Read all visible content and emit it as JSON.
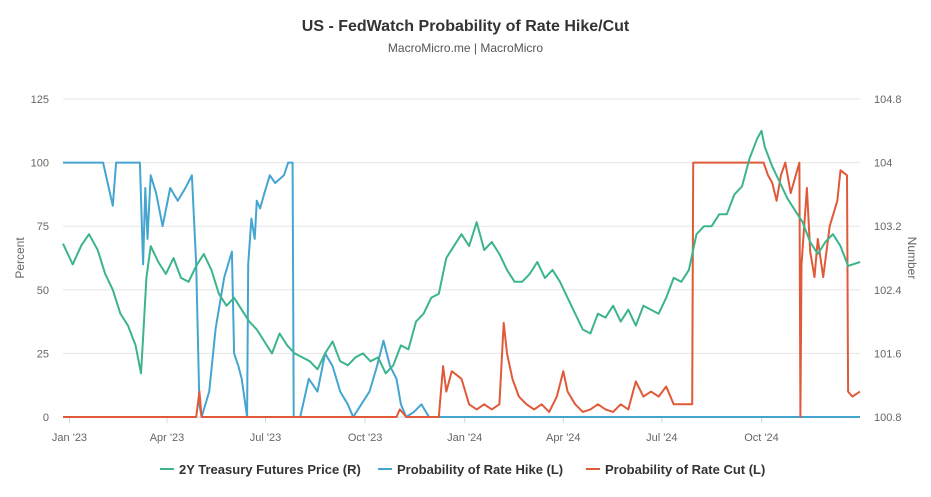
{
  "chart_data": {
    "type": "line",
    "title": "US - FedWatch Probability of Rate Hike/Cut",
    "subtitle": "MacroMicro.me | MacroMicro",
    "y_left_label": "Percent",
    "y_right_label": "Number",
    "ylim_left": [
      0,
      125
    ],
    "ylim_right": [
      100.8,
      104.8
    ],
    "yticks_left": [
      "0",
      "25",
      "50",
      "75",
      "100",
      "125"
    ],
    "yticks_right": [
      "100.8",
      "101.6",
      "102.4",
      "103.2",
      "104",
      "104.8"
    ],
    "xlim": [
      "2022-12-26",
      "2024-12-31"
    ],
    "xticks": [
      {
        "date": "2023-01-01",
        "label": "Jan '23"
      },
      {
        "date": "2023-04-01",
        "label": "Apr '23"
      },
      {
        "date": "2023-07-01",
        "label": "Jul '23"
      },
      {
        "date": "2023-10-01",
        "label": "Oct '23"
      },
      {
        "date": "2024-01-01",
        "label": "Jan '24"
      },
      {
        "date": "2024-04-01",
        "label": "Apr '24"
      },
      {
        "date": "2024-07-01",
        "label": "Jul '24"
      },
      {
        "date": "2024-10-01",
        "label": "Oct '24"
      }
    ],
    "grid": true,
    "legend_position": "bottom",
    "series": [
      {
        "name": "2Y Treasury Futures Price (R)",
        "axis": "right",
        "color": "#3cb48c",
        "points": [
          [
            "2022-12-26",
            102.98
          ],
          [
            "2023-01-04",
            102.72
          ],
          [
            "2023-01-12",
            102.96
          ],
          [
            "2023-01-19",
            103.1
          ],
          [
            "2023-01-27",
            102.9
          ],
          [
            "2023-02-03",
            102.6
          ],
          [
            "2023-02-10",
            102.4
          ],
          [
            "2023-02-17",
            102.1
          ],
          [
            "2023-02-24",
            101.95
          ],
          [
            "2023-03-03",
            101.7
          ],
          [
            "2023-03-08",
            101.35
          ],
          [
            "2023-03-10",
            101.8
          ],
          [
            "2023-03-13",
            102.55
          ],
          [
            "2023-03-17",
            102.95
          ],
          [
            "2023-03-24",
            102.75
          ],
          [
            "2023-03-31",
            102.6
          ],
          [
            "2023-04-07",
            102.8
          ],
          [
            "2023-04-14",
            102.55
          ],
          [
            "2023-04-21",
            102.5
          ],
          [
            "2023-04-28",
            102.7
          ],
          [
            "2023-05-05",
            102.85
          ],
          [
            "2023-05-12",
            102.65
          ],
          [
            "2023-05-19",
            102.35
          ],
          [
            "2023-05-26",
            102.2
          ],
          [
            "2023-06-02",
            102.3
          ],
          [
            "2023-06-09",
            102.15
          ],
          [
            "2023-06-16",
            102.0
          ],
          [
            "2023-06-23",
            101.9
          ],
          [
            "2023-06-30",
            101.75
          ],
          [
            "2023-07-07",
            101.6
          ],
          [
            "2023-07-14",
            101.85
          ],
          [
            "2023-07-21",
            101.7
          ],
          [
            "2023-07-28",
            101.6
          ],
          [
            "2023-08-04",
            101.55
          ],
          [
            "2023-08-11",
            101.5
          ],
          [
            "2023-08-18",
            101.4
          ],
          [
            "2023-08-25",
            101.6
          ],
          [
            "2023-09-01",
            101.75
          ],
          [
            "2023-09-08",
            101.5
          ],
          [
            "2023-09-15",
            101.45
          ],
          [
            "2023-09-22",
            101.55
          ],
          [
            "2023-09-29",
            101.6
          ],
          [
            "2023-10-06",
            101.5
          ],
          [
            "2023-10-13",
            101.55
          ],
          [
            "2023-10-20",
            101.35
          ],
          [
            "2023-10-27",
            101.45
          ],
          [
            "2023-11-03",
            101.7
          ],
          [
            "2023-11-10",
            101.65
          ],
          [
            "2023-11-17",
            102.0
          ],
          [
            "2023-11-24",
            102.1
          ],
          [
            "2023-12-01",
            102.3
          ],
          [
            "2023-12-08",
            102.35
          ],
          [
            "2023-12-15",
            102.8
          ],
          [
            "2023-12-22",
            102.95
          ],
          [
            "2023-12-29",
            103.1
          ],
          [
            "2024-01-05",
            102.95
          ],
          [
            "2024-01-12",
            103.25
          ],
          [
            "2024-01-19",
            102.9
          ],
          [
            "2024-01-26",
            103.0
          ],
          [
            "2024-02-02",
            102.85
          ],
          [
            "2024-02-09",
            102.65
          ],
          [
            "2024-02-16",
            102.5
          ],
          [
            "2024-02-23",
            102.5
          ],
          [
            "2024-03-01",
            102.6
          ],
          [
            "2024-03-08",
            102.75
          ],
          [
            "2024-03-15",
            102.55
          ],
          [
            "2024-03-22",
            102.65
          ],
          [
            "2024-03-29",
            102.5
          ],
          [
            "2024-04-05",
            102.3
          ],
          [
            "2024-04-12",
            102.1
          ],
          [
            "2024-04-19",
            101.9
          ],
          [
            "2024-04-26",
            101.85
          ],
          [
            "2024-05-03",
            102.1
          ],
          [
            "2024-05-10",
            102.05
          ],
          [
            "2024-05-17",
            102.2
          ],
          [
            "2024-05-24",
            102.0
          ],
          [
            "2024-05-31",
            102.15
          ],
          [
            "2024-06-07",
            101.95
          ],
          [
            "2024-06-14",
            102.2
          ],
          [
            "2024-06-21",
            102.15
          ],
          [
            "2024-06-28",
            102.1
          ],
          [
            "2024-07-05",
            102.3
          ],
          [
            "2024-07-12",
            102.55
          ],
          [
            "2024-07-19",
            102.5
          ],
          [
            "2024-07-26",
            102.65
          ],
          [
            "2024-08-02",
            103.1
          ],
          [
            "2024-08-09",
            103.2
          ],
          [
            "2024-08-16",
            103.2
          ],
          [
            "2024-08-23",
            103.35
          ],
          [
            "2024-08-30",
            103.35
          ],
          [
            "2024-09-06",
            103.6
          ],
          [
            "2024-09-13",
            103.7
          ],
          [
            "2024-09-20",
            104.05
          ],
          [
            "2024-09-27",
            104.3
          ],
          [
            "2024-10-01",
            104.4
          ],
          [
            "2024-10-04",
            104.2
          ],
          [
            "2024-10-11",
            103.95
          ],
          [
            "2024-10-18",
            103.75
          ],
          [
            "2024-10-25",
            103.55
          ],
          [
            "2024-11-01",
            103.4
          ],
          [
            "2024-11-08",
            103.25
          ],
          [
            "2024-11-15",
            103.0
          ],
          [
            "2024-11-22",
            102.85
          ],
          [
            "2024-11-29",
            103.0
          ],
          [
            "2024-12-06",
            103.1
          ],
          [
            "2024-12-13",
            102.95
          ],
          [
            "2024-12-20",
            102.7
          ],
          [
            "2024-12-31",
            102.75
          ]
        ]
      },
      {
        "name": "Probability of Rate Hike (L)",
        "axis": "left",
        "color": "#45a5d1",
        "points": [
          [
            "2022-12-26",
            100
          ],
          [
            "2023-01-31",
            100
          ],
          [
            "2023-02-01",
            100
          ],
          [
            "2023-02-10",
            83
          ],
          [
            "2023-02-13",
            100
          ],
          [
            "2023-03-07",
            100
          ],
          [
            "2023-03-10",
            60
          ],
          [
            "2023-03-12",
            90
          ],
          [
            "2023-03-14",
            70
          ],
          [
            "2023-03-17",
            95
          ],
          [
            "2023-03-22",
            88
          ],
          [
            "2023-03-28",
            75
          ],
          [
            "2023-04-04",
            90
          ],
          [
            "2023-04-11",
            85
          ],
          [
            "2023-04-18",
            90
          ],
          [
            "2023-04-24",
            95
          ],
          [
            "2023-04-28",
            60
          ],
          [
            "2023-05-01",
            5
          ],
          [
            "2023-05-03",
            0
          ],
          [
            "2023-05-10",
            10
          ],
          [
            "2023-05-16",
            35
          ],
          [
            "2023-05-24",
            55
          ],
          [
            "2023-05-31",
            65
          ],
          [
            "2023-06-02",
            25
          ],
          [
            "2023-06-06",
            20
          ],
          [
            "2023-06-09",
            15
          ],
          [
            "2023-06-14",
            0
          ],
          [
            "2023-06-15",
            60
          ],
          [
            "2023-06-18",
            78
          ],
          [
            "2023-06-21",
            70
          ],
          [
            "2023-06-23",
            85
          ],
          [
            "2023-06-26",
            82
          ],
          [
            "2023-06-30",
            88
          ],
          [
            "2023-07-05",
            95
          ],
          [
            "2023-07-10",
            92
          ],
          [
            "2023-07-18",
            95
          ],
          [
            "2023-07-22",
            100
          ],
          [
            "2023-07-26",
            100
          ],
          [
            "2023-07-27",
            0
          ],
          [
            "2023-08-02",
            0
          ],
          [
            "2023-08-10",
            15
          ],
          [
            "2023-08-18",
            10
          ],
          [
            "2023-08-25",
            25
          ],
          [
            "2023-09-01",
            20
          ],
          [
            "2023-09-08",
            10
          ],
          [
            "2023-09-15",
            5
          ],
          [
            "2023-09-20",
            0
          ],
          [
            "2023-10-05",
            10
          ],
          [
            "2023-10-12",
            20
          ],
          [
            "2023-10-18",
            30
          ],
          [
            "2023-10-24",
            20
          ],
          [
            "2023-10-30",
            15
          ],
          [
            "2023-11-03",
            5
          ],
          [
            "2023-11-08",
            0
          ],
          [
            "2023-11-15",
            2
          ],
          [
            "2023-11-22",
            5
          ],
          [
            "2023-11-29",
            0
          ],
          [
            "2024-12-31",
            0
          ]
        ]
      },
      {
        "name": "Probability of Rate Cut (L)",
        "axis": "left",
        "color": "#e05a3a",
        "points": [
          [
            "2022-12-26",
            0
          ],
          [
            "2023-04-28",
            0
          ],
          [
            "2023-05-01",
            10
          ],
          [
            "2023-05-03",
            0
          ],
          [
            "2023-10-30",
            0
          ],
          [
            "2023-11-02",
            3
          ],
          [
            "2023-11-08",
            0
          ],
          [
            "2023-12-08",
            0
          ],
          [
            "2023-12-12",
            20
          ],
          [
            "2023-12-15",
            10
          ],
          [
            "2023-12-20",
            18
          ],
          [
            "2023-12-29",
            15
          ],
          [
            "2024-01-05",
            5
          ],
          [
            "2024-01-12",
            3
          ],
          [
            "2024-01-19",
            5
          ],
          [
            "2024-01-26",
            3
          ],
          [
            "2024-02-02",
            5
          ],
          [
            "2024-02-06",
            37
          ],
          [
            "2024-02-09",
            25
          ],
          [
            "2024-02-14",
            15
          ],
          [
            "2024-02-20",
            8
          ],
          [
            "2024-02-27",
            5
          ],
          [
            "2024-03-05",
            3
          ],
          [
            "2024-03-12",
            5
          ],
          [
            "2024-03-19",
            2
          ],
          [
            "2024-03-26",
            8
          ],
          [
            "2024-04-01",
            18
          ],
          [
            "2024-04-05",
            10
          ],
          [
            "2024-04-12",
            5
          ],
          [
            "2024-04-19",
            2
          ],
          [
            "2024-04-26",
            3
          ],
          [
            "2024-05-03",
            5
          ],
          [
            "2024-05-10",
            3
          ],
          [
            "2024-05-17",
            2
          ],
          [
            "2024-05-24",
            5
          ],
          [
            "2024-05-31",
            3
          ],
          [
            "2024-06-07",
            14
          ],
          [
            "2024-06-14",
            8
          ],
          [
            "2024-06-21",
            10
          ],
          [
            "2024-06-28",
            8
          ],
          [
            "2024-07-05",
            12
          ],
          [
            "2024-07-12",
            5
          ],
          [
            "2024-07-19",
            5
          ],
          [
            "2024-07-29",
            5
          ],
          [
            "2024-07-30",
            100
          ],
          [
            "2024-10-03",
            100
          ],
          [
            "2024-10-07",
            95
          ],
          [
            "2024-10-11",
            92
          ],
          [
            "2024-10-15",
            85
          ],
          [
            "2024-10-19",
            95
          ],
          [
            "2024-10-23",
            100
          ],
          [
            "2024-10-28",
            88
          ],
          [
            "2024-11-05",
            100
          ],
          [
            "2024-11-06",
            0
          ],
          [
            "2024-11-07",
            60
          ],
          [
            "2024-11-12",
            90
          ],
          [
            "2024-11-15",
            65
          ],
          [
            "2024-11-19",
            55
          ],
          [
            "2024-11-22",
            70
          ],
          [
            "2024-11-27",
            55
          ],
          [
            "2024-12-03",
            75
          ],
          [
            "2024-12-10",
            85
          ],
          [
            "2024-12-13",
            97
          ],
          [
            "2024-12-16",
            96
          ],
          [
            "2024-12-19",
            95
          ],
          [
            "2024-12-20",
            10
          ],
          [
            "2024-12-24",
            8
          ],
          [
            "2024-12-31",
            10
          ]
        ]
      }
    ]
  }
}
